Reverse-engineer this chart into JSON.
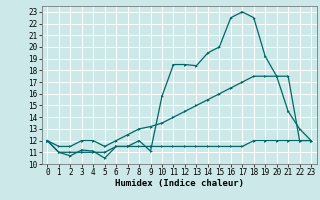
{
  "title": "",
  "xlabel": "Humidex (Indice chaleur)",
  "bg_color": "#cce8e8",
  "grid_color": "#ffffff",
  "line_color": "#006666",
  "xlim": [
    -0.5,
    23.5
  ],
  "ylim": [
    10,
    23.5
  ],
  "xticks": [
    0,
    1,
    2,
    3,
    4,
    5,
    6,
    7,
    8,
    9,
    10,
    11,
    12,
    13,
    14,
    15,
    16,
    17,
    18,
    19,
    20,
    21,
    22,
    23
  ],
  "yticks": [
    10,
    11,
    12,
    13,
    14,
    15,
    16,
    17,
    18,
    19,
    20,
    21,
    22,
    23
  ],
  "x": [
    0,
    1,
    2,
    3,
    4,
    5,
    6,
    7,
    8,
    9,
    10,
    11,
    12,
    13,
    14,
    15,
    16,
    17,
    18,
    19,
    20,
    21,
    22,
    23
  ],
  "line1_y": [
    12,
    11,
    10.7,
    11.2,
    11.1,
    10.5,
    11.5,
    11.5,
    12.0,
    11.1,
    15.8,
    18.5,
    18.5,
    18.4,
    19.5,
    20.0,
    22.5,
    23.0,
    22.5,
    19.2,
    17.5,
    14.5,
    13.0,
    12.0
  ],
  "line2_y": [
    12,
    11.5,
    11.5,
    12.0,
    12.0,
    11.5,
    12.0,
    12.5,
    13.0,
    13.2,
    13.5,
    14.0,
    14.5,
    15.0,
    15.5,
    16.0,
    16.5,
    17.0,
    17.5,
    17.5,
    17.5,
    17.5,
    12.0,
    12.0
  ],
  "line3_y": [
    12,
    11,
    11,
    11,
    11,
    11,
    11.5,
    11.5,
    11.5,
    11.5,
    11.5,
    11.5,
    11.5,
    11.5,
    11.5,
    11.5,
    11.5,
    11.5,
    12.0,
    12.0,
    12.0,
    12.0,
    12.0,
    12.0
  ],
  "tick_fontsize": 5.5,
  "xlabel_fontsize": 6.5,
  "marker_size": 2.0,
  "linewidth": 0.9
}
